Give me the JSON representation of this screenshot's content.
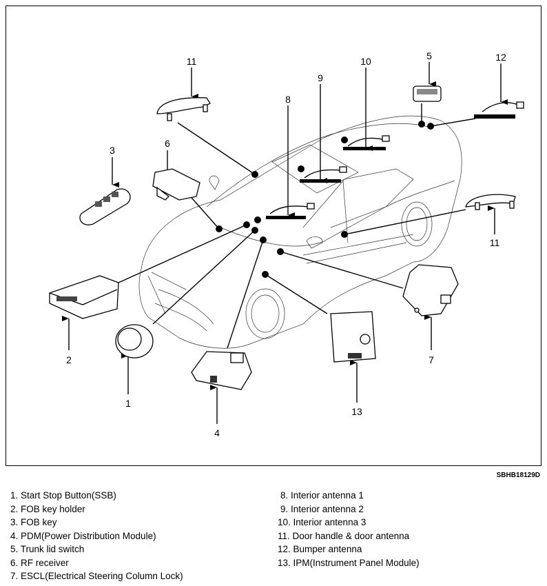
{
  "figure_code": "SBHB18129D",
  "callouts": {
    "c1": "1",
    "c2": "2",
    "c3": "3",
    "c4": "4",
    "c5": "5",
    "c6": "6",
    "c7": "7",
    "c8": "8",
    "c9": "9",
    "c10": "10",
    "c11a": "11",
    "c11b": "11",
    "c12": "12",
    "c13": "13"
  },
  "legend": {
    "left": [
      "1. Start Stop Button(SSB)",
      "2. FOB key holder",
      "3. FOB key",
      "4. PDM(Power Distribution Module)",
      "5. Trunk lid switch",
      "6. RF receiver",
      "7. ESCL(Electrical Steering Column Lock)"
    ],
    "right": [
      "8. Interior antenna 1",
      "9. Interior antenna 2",
      "10. Interior antenna 3",
      "11. Door handle & door antenna",
      "12. Bumper antenna",
      "13. IPM(Instrument Panel Module)"
    ]
  }
}
